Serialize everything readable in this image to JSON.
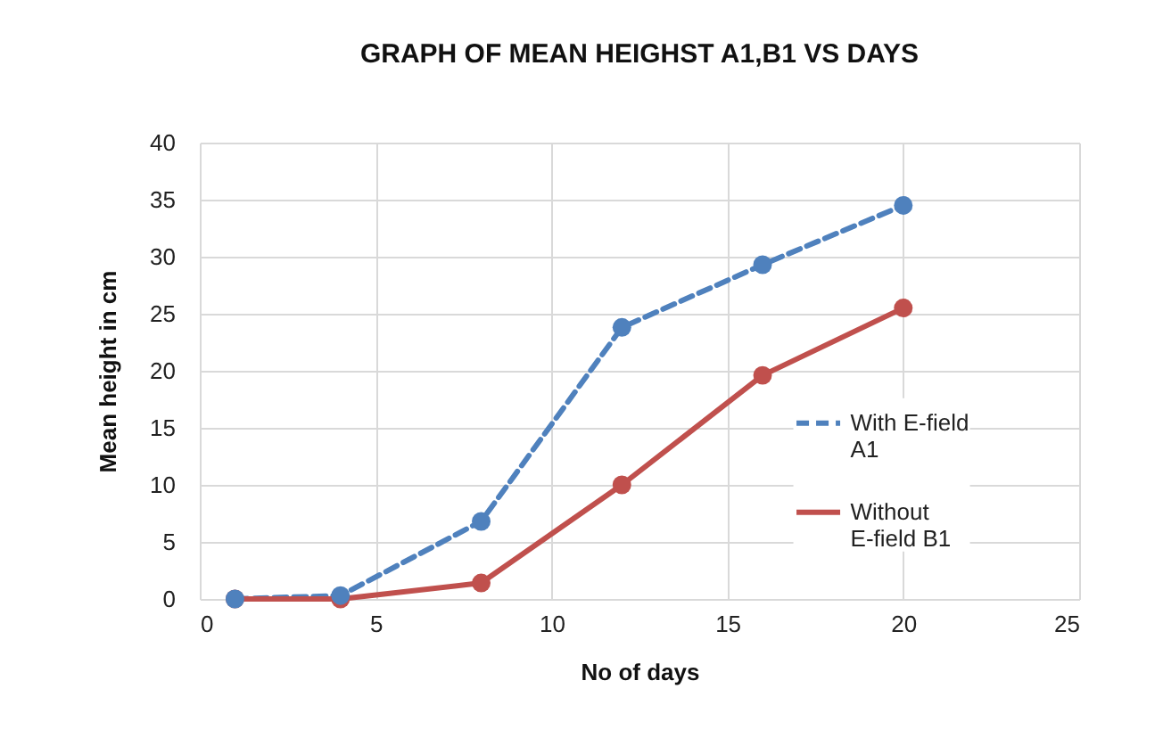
{
  "chart_data": {
    "type": "line",
    "title": "GRAPH OF   MEAN HEIGHST A1,B1 VS DAYS",
    "xlabel": "No of days",
    "ylabel": "Mean height in cm",
    "x": [
      1,
      4,
      8,
      12,
      16,
      20
    ],
    "series": [
      {
        "name": "With E-field A1",
        "color": "#4f81bd",
        "line_style": "dashed",
        "values": [
          0,
          0.3,
          6.8,
          23.8,
          29.3,
          34.5
        ]
      },
      {
        "name": "Without E-field B1",
        "color": "#c0504d",
        "line_style": "solid",
        "values": [
          0,
          0,
          1.4,
          10,
          19.6,
          25.5
        ]
      }
    ],
    "xlim": [
      0,
      25
    ],
    "xticks": [
      0,
      5,
      10,
      15,
      20,
      25
    ],
    "ylim": [
      0,
      40
    ],
    "yticks": [
      0,
      5,
      10,
      15,
      20,
      25,
      30,
      35,
      40
    ],
    "grid": true,
    "legend": "right",
    "marker": "circle"
  }
}
